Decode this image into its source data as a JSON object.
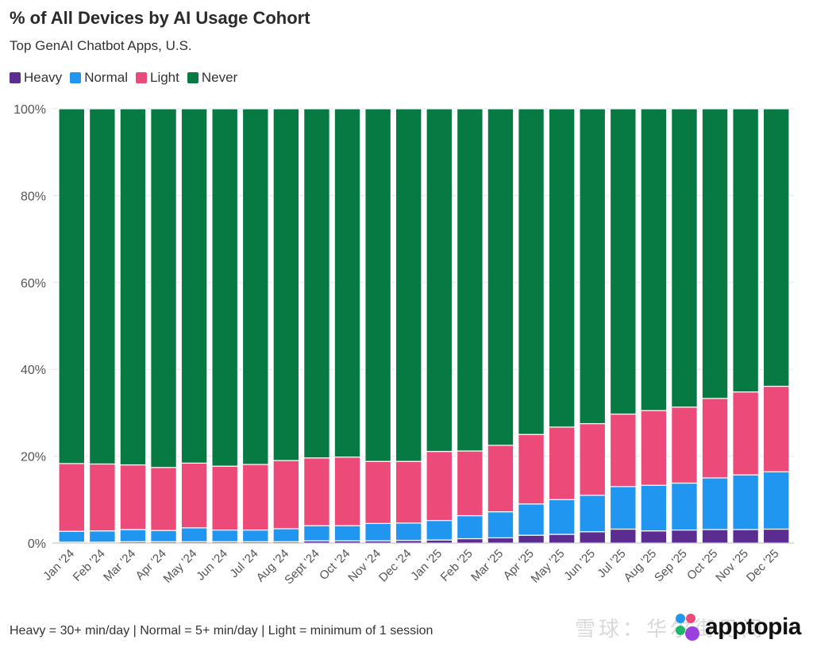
{
  "title": "% of All Devices by AI Usage Cohort",
  "subtitle": "Top GenAI Chatbot Apps, U.S.",
  "footnote": "Heavy = 30+ min/day | Normal = 5+ min/day | Light = minimum of 1 session",
  "watermark": "雪球：华尔街见闻",
  "logo_text": "apptopia",
  "colors": {
    "Heavy": "#5b2d90",
    "Normal": "#2196f0",
    "Light": "#ec4a79",
    "Never": "#077a43",
    "grid": "#e3e3e3",
    "axis": "#555555"
  },
  "chart_data": {
    "type": "bar",
    "stacked": true,
    "title": "% of All Devices by AI Usage Cohort",
    "subtitle": "Top GenAI Chatbot Apps, U.S.",
    "xlabel": "",
    "ylabel": "",
    "ylim": [
      0,
      100
    ],
    "yticks": [
      "0%",
      "20%",
      "40%",
      "60%",
      "80%",
      "100%"
    ],
    "legend_position": "top-left",
    "grid": true,
    "categories": [
      "Jan '24",
      "Feb '24",
      "Mar '24",
      "Apr '24",
      "May '24",
      "Jun '24",
      "Jul '24",
      "Aug '24",
      "Sept '24",
      "Oct '24",
      "Nov '24",
      "Dec '24",
      "Jan '25",
      "Feb '25",
      "Mar '25",
      "Apr '25",
      "May '25",
      "Jun '25",
      "Jul '25",
      "Aug '25",
      "Sep '25",
      "Oct '25",
      "Nov '25",
      "Dec '25"
    ],
    "series": [
      {
        "name": "Heavy",
        "values": [
          0.2,
          0.2,
          0.3,
          0.3,
          0.3,
          0.3,
          0.3,
          0.3,
          0.5,
          0.5,
          0.5,
          0.6,
          0.7,
          1.0,
          1.2,
          1.8,
          2.0,
          2.6,
          3.2,
          2.8,
          3.0,
          3.1,
          3.1,
          3.2
        ]
      },
      {
        "name": "Normal",
        "values": [
          2.5,
          2.6,
          2.8,
          2.6,
          3.2,
          2.7,
          2.7,
          3.0,
          3.5,
          3.5,
          4.0,
          4.0,
          4.5,
          5.3,
          6.0,
          7.2,
          8.0,
          8.4,
          9.8,
          10.5,
          10.8,
          11.9,
          12.6,
          13.2
        ]
      },
      {
        "name": "Light",
        "values": [
          15.6,
          15.4,
          14.9,
          14.5,
          14.9,
          14.7,
          15.1,
          15.7,
          15.6,
          15.8,
          14.3,
          14.2,
          15.9,
          14.9,
          15.3,
          16.0,
          16.7,
          16.5,
          16.7,
          17.2,
          17.5,
          18.3,
          19.1,
          19.7
        ]
      },
      {
        "name": "Never",
        "values": [
          81.7,
          81.8,
          82.0,
          82.6,
          81.6,
          82.3,
          81.9,
          81.0,
          80.4,
          80.2,
          81.2,
          81.2,
          78.9,
          78.8,
          77.5,
          75.0,
          73.3,
          72.5,
          70.3,
          69.5,
          68.7,
          66.7,
          65.2,
          63.9
        ]
      }
    ]
  }
}
